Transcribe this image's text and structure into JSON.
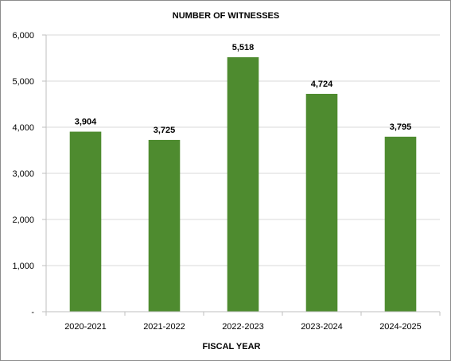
{
  "chart_data": {
    "type": "bar",
    "title": "NUMBER  OF WITNESSES",
    "xlabel": "FISCAL YEAR",
    "ylabel": "",
    "categories": [
      "2020-2021",
      "2021-2022",
      "2022-2023",
      "2023-2024",
      "2024-2025"
    ],
    "values": [
      3904,
      3725,
      5518,
      4724,
      3795
    ],
    "data_labels": [
      "3,904",
      "3,725",
      "5,518",
      "4,724",
      "3,795"
    ],
    "ylim": [
      0,
      6000
    ],
    "y_ticks": [
      0,
      1000,
      2000,
      3000,
      4000,
      5000,
      6000
    ],
    "y_tick_labels": [
      "-",
      "1,000",
      "2,000",
      "3,000",
      "4,000",
      "5,000",
      "6,000"
    ],
    "grid": true,
    "legend": "none",
    "colors": {
      "bar": "#4e8b2f",
      "grid": "#d9d9d9",
      "axis": "#bfbfbf"
    }
  }
}
